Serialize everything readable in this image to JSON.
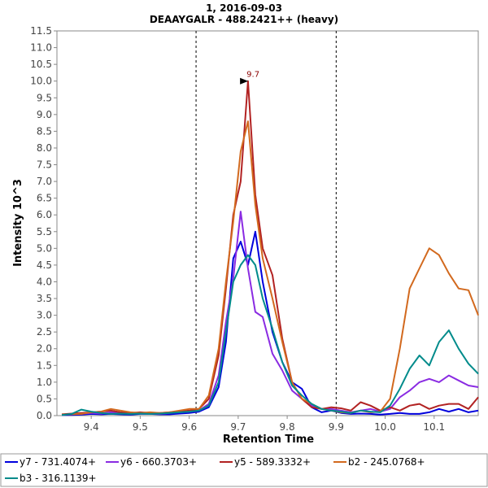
{
  "chart_data": {
    "type": "line",
    "title": "1, 2016-09-03",
    "subtitle": "DEAAYGALR - 488.2421++ (heavy)",
    "xlabel": "Retention Time",
    "ylabel": "Intensity  10^3",
    "xlim": [
      9.33,
      10.19
    ],
    "ylim": [
      0,
      11.5
    ],
    "x_ticks": [
      "9.4",
      "9.5",
      "9.6",
      "9.7",
      "9.8",
      "9.9",
      "10.0",
      "10.1"
    ],
    "y_ticks": [
      "0.0",
      "0.5",
      "1.0",
      "1.5",
      "2.0",
      "2.5",
      "3.0",
      "3.5",
      "4.0",
      "4.5",
      "5.0",
      "5.5",
      "6.0",
      "6.5",
      "7.0",
      "7.5",
      "8.0",
      "8.5",
      "9.0",
      "9.5",
      "10.0",
      "10.5",
      "11.0",
      "11.5"
    ],
    "integration_boundaries": [
      9.614,
      9.9
    ],
    "peak_annotation": {
      "label": "9.7",
      "x": 9.727,
      "y": 10.0,
      "color": "#8b0000"
    },
    "grid": false,
    "legend_position": "bottom",
    "series": [
      {
        "name": "y7 - 731.4074+",
        "color": "#0000dd",
        "x": [
          9.34,
          9.36,
          9.38,
          9.4,
          9.42,
          9.44,
          9.46,
          9.48,
          9.5,
          9.52,
          9.54,
          9.56,
          9.58,
          9.6,
          9.62,
          9.64,
          9.66,
          9.675,
          9.69,
          9.705,
          9.72,
          9.735,
          9.75,
          9.77,
          9.79,
          9.81,
          9.83,
          9.85,
          9.87,
          9.89,
          9.91,
          9.93,
          9.95,
          9.97,
          9.99,
          10.01,
          10.03,
          10.05,
          10.07,
          10.09,
          10.11,
          10.13,
          10.15,
          10.17,
          10.19
        ],
        "values": [
          0.02,
          0.02,
          0.03,
          0.05,
          0.04,
          0.05,
          0.04,
          0.03,
          0.05,
          0.05,
          0.04,
          0.04,
          0.06,
          0.08,
          0.12,
          0.25,
          0.85,
          2.2,
          4.7,
          5.2,
          4.5,
          5.5,
          4.0,
          2.5,
          1.6,
          1.0,
          0.8,
          0.25,
          0.1,
          0.15,
          0.08,
          0.05,
          0.06,
          0.05,
          0.03,
          0.05,
          0.08,
          0.05,
          0.05,
          0.1,
          0.2,
          0.12,
          0.2,
          0.1,
          0.15
        ]
      },
      {
        "name": "y6 - 660.3703+",
        "color": "#8a2be2",
        "x": [
          9.34,
          9.36,
          9.38,
          9.4,
          9.42,
          9.44,
          9.46,
          9.48,
          9.5,
          9.52,
          9.54,
          9.56,
          9.58,
          9.6,
          9.62,
          9.64,
          9.66,
          9.675,
          9.69,
          9.705,
          9.72,
          9.735,
          9.75,
          9.77,
          9.79,
          9.81,
          9.83,
          9.85,
          9.87,
          9.89,
          9.91,
          9.93,
          9.95,
          9.97,
          9.99,
          10.01,
          10.03,
          10.05,
          10.07,
          10.09,
          10.11,
          10.13,
          10.15,
          10.17,
          10.19
        ],
        "values": [
          0.03,
          0.05,
          0.05,
          0.08,
          0.06,
          0.1,
          0.08,
          0.06,
          0.08,
          0.06,
          0.05,
          0.08,
          0.1,
          0.12,
          0.15,
          0.35,
          1.2,
          2.8,
          4.1,
          6.1,
          4.4,
          3.1,
          2.95,
          1.85,
          1.35,
          0.75,
          0.5,
          0.3,
          0.2,
          0.2,
          0.15,
          0.1,
          0.15,
          0.2,
          0.12,
          0.2,
          0.55,
          0.75,
          1.0,
          1.1,
          1.0,
          1.2,
          1.05,
          0.9,
          0.85
        ]
      },
      {
        "name": "y5 - 589.3332+",
        "color": "#b22222",
        "x": [
          9.34,
          9.36,
          9.38,
          9.4,
          9.42,
          9.44,
          9.46,
          9.48,
          9.5,
          9.52,
          9.54,
          9.56,
          9.58,
          9.6,
          9.62,
          9.64,
          9.66,
          9.675,
          9.69,
          9.705,
          9.72,
          9.735,
          9.75,
          9.77,
          9.79,
          9.81,
          9.83,
          9.85,
          9.87,
          9.89,
          9.91,
          9.93,
          9.95,
          9.97,
          9.99,
          10.01,
          10.03,
          10.05,
          10.07,
          10.09,
          10.11,
          10.13,
          10.15,
          10.17,
          10.19
        ],
        "values": [
          0.04,
          0.06,
          0.08,
          0.1,
          0.12,
          0.15,
          0.1,
          0.08,
          0.1,
          0.08,
          0.08,
          0.1,
          0.12,
          0.15,
          0.2,
          0.5,
          1.8,
          3.8,
          6.0,
          7.0,
          10.0,
          6.6,
          5.0,
          4.2,
          2.3,
          1.0,
          0.5,
          0.25,
          0.2,
          0.25,
          0.22,
          0.15,
          0.4,
          0.3,
          0.15,
          0.25,
          0.15,
          0.3,
          0.35,
          0.2,
          0.3,
          0.35,
          0.35,
          0.2,
          0.55
        ]
      },
      {
        "name": "b2 - 245.0768+",
        "color": "#d2691e",
        "x": [
          9.34,
          9.36,
          9.38,
          9.4,
          9.42,
          9.44,
          9.46,
          9.48,
          9.5,
          9.52,
          9.54,
          9.56,
          9.58,
          9.6,
          9.62,
          9.64,
          9.66,
          9.675,
          9.69,
          9.705,
          9.72,
          9.735,
          9.75,
          9.77,
          9.79,
          9.81,
          9.83,
          9.85,
          9.87,
          9.89,
          9.91,
          9.93,
          9.95,
          9.97,
          9.99,
          10.01,
          10.03,
          10.05,
          10.07,
          10.09,
          10.11,
          10.13,
          10.15,
          10.17,
          10.19
        ],
        "values": [
          0.03,
          0.04,
          0.05,
          0.1,
          0.12,
          0.2,
          0.15,
          0.1,
          0.08,
          0.1,
          0.08,
          0.1,
          0.15,
          0.2,
          0.2,
          0.6,
          2.0,
          4.0,
          5.8,
          7.9,
          8.8,
          6.3,
          4.7,
          3.5,
          2.2,
          1.0,
          0.5,
          0.35,
          0.2,
          0.15,
          0.1,
          0.08,
          0.15,
          0.1,
          0.12,
          0.5,
          2.0,
          3.8,
          4.4,
          5.0,
          4.8,
          4.25,
          3.8,
          3.75,
          3.0
        ]
      },
      {
        "name": "b3 - 316.1139+",
        "color": "#008b8b",
        "x": [
          9.34,
          9.36,
          9.38,
          9.4,
          9.42,
          9.44,
          9.46,
          9.48,
          9.5,
          9.52,
          9.54,
          9.56,
          9.58,
          9.6,
          9.62,
          9.64,
          9.66,
          9.675,
          9.69,
          9.705,
          9.72,
          9.735,
          9.75,
          9.77,
          9.79,
          9.81,
          9.83,
          9.85,
          9.87,
          9.89,
          9.91,
          9.93,
          9.95,
          9.97,
          9.99,
          10.01,
          10.03,
          10.05,
          10.07,
          10.09,
          10.11,
          10.13,
          10.15,
          10.17,
          10.19
        ],
        "values": [
          0.02,
          0.05,
          0.18,
          0.12,
          0.08,
          0.05,
          0.06,
          0.05,
          0.06,
          0.05,
          0.06,
          0.08,
          0.1,
          0.12,
          0.15,
          0.3,
          1.0,
          2.5,
          4.0,
          4.5,
          4.8,
          4.5,
          3.5,
          2.6,
          1.6,
          0.9,
          0.6,
          0.35,
          0.2,
          0.15,
          0.12,
          0.08,
          0.15,
          0.12,
          0.1,
          0.3,
          0.8,
          1.4,
          1.8,
          1.5,
          2.2,
          2.55,
          2.0,
          1.55,
          1.25
        ]
      }
    ]
  }
}
